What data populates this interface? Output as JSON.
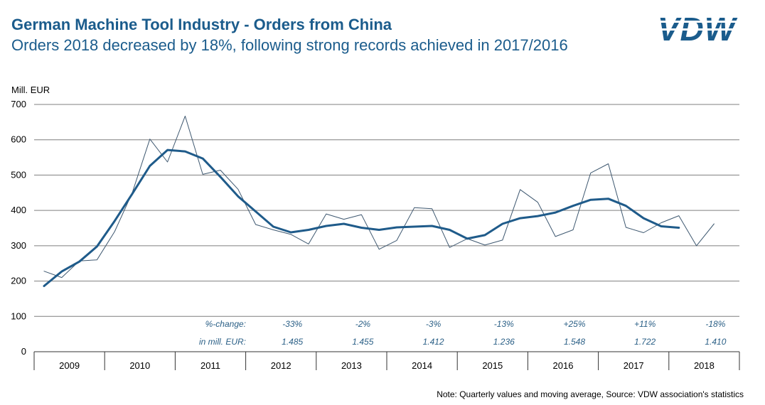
{
  "header": {
    "title": "German Machine Tool Industry - Orders from China",
    "subtitle": "Orders 2018 decreased by 18%, following strong records achieved in 2017/2016",
    "logo_text": "VDW"
  },
  "footnote": "Note: Quarterly values and moving average, Source: VDW association's statistics",
  "colors": {
    "title": "#1b5c8c",
    "moving_average_line": "#1f5b8a",
    "quarterly_line": "#3e5870",
    "annotation": "#2a5f86",
    "grid": "#7f7f7f"
  },
  "chart_data": {
    "type": "line",
    "ylabel": "Mill. EUR",
    "ylim": [
      0,
      700
    ],
    "yticks": [
      "0",
      "100",
      "200",
      "300",
      "400",
      "500",
      "600",
      "700"
    ],
    "grid": true,
    "years": [
      "2009",
      "2010",
      "2011",
      "2012",
      "2013",
      "2014",
      "2015",
      "2016",
      "2017",
      "2018"
    ],
    "series": [
      {
        "style": "thin",
        "x": [
          2009.0,
          2009.25,
          2009.5,
          2009.75,
          2010.0,
          2010.25,
          2010.5,
          2010.75,
          2011.0,
          2011.25,
          2011.5,
          2011.75,
          2012.0,
          2012.25,
          2012.5,
          2012.75,
          2013.0,
          2013.25,
          2013.5,
          2013.75,
          2014.0,
          2014.25,
          2014.5,
          2014.75,
          2015.0,
          2015.25,
          2015.5,
          2015.75,
          2016.0,
          2016.25,
          2016.5,
          2016.75,
          2017.0,
          2017.25,
          2017.5,
          2017.75,
          2018.0,
          2018.25,
          2018.5
        ],
        "values": [
          228,
          210,
          257,
          260,
          340,
          450,
          602,
          537,
          667,
          502,
          514,
          460,
          360,
          345,
          332,
          305,
          390,
          375,
          388,
          290,
          315,
          408,
          405,
          295,
          320,
          302,
          316,
          459,
          423,
          326,
          345,
          506,
          532,
          352,
          337,
          365,
          385,
          300,
          362
        ]
      },
      {
        "style": "thick",
        "x": [
          2009.0,
          2009.25,
          2009.5,
          2009.75,
          2010.0,
          2010.25,
          2010.5,
          2010.75,
          2011.0,
          2011.25,
          2011.5,
          2011.75,
          2012.0,
          2012.25,
          2012.5,
          2012.75,
          2013.0,
          2013.25,
          2013.5,
          2013.75,
          2014.0,
          2014.25,
          2014.5,
          2014.75,
          2015.0,
          2015.25,
          2015.5,
          2015.75,
          2016.0,
          2016.25,
          2016.5,
          2016.75,
          2017.0,
          2017.25,
          2017.5,
          2017.75,
          2018.0
        ],
        "values": [
          186,
          227,
          255,
          298,
          370,
          447,
          526,
          571,
          567,
          547,
          495,
          440,
          397,
          354,
          338,
          345,
          356,
          362,
          351,
          345,
          352,
          354,
          356,
          345,
          320,
          330,
          362,
          378,
          384,
          394,
          413,
          430,
          433,
          413,
          378,
          355,
          351
        ]
      }
    ],
    "annotations": {
      "row1_label": "%-change:",
      "row2_label": "in mill. EUR:",
      "items": [
        {
          "year": "2012",
          "pct": "-33%",
          "value": "1.485"
        },
        {
          "year": "2013",
          "pct": "-2%",
          "value": "1.455"
        },
        {
          "year": "2014",
          "pct": "-3%",
          "value": "1.412"
        },
        {
          "year": "2015",
          "pct": "-13%",
          "value": "1.236"
        },
        {
          "year": "2016",
          "pct": "+25%",
          "value": "1.548"
        },
        {
          "year": "2017",
          "pct": "+11%",
          "value": "1.722"
        },
        {
          "year": "2018",
          "pct": "-18%",
          "value": "1.410"
        }
      ]
    }
  }
}
